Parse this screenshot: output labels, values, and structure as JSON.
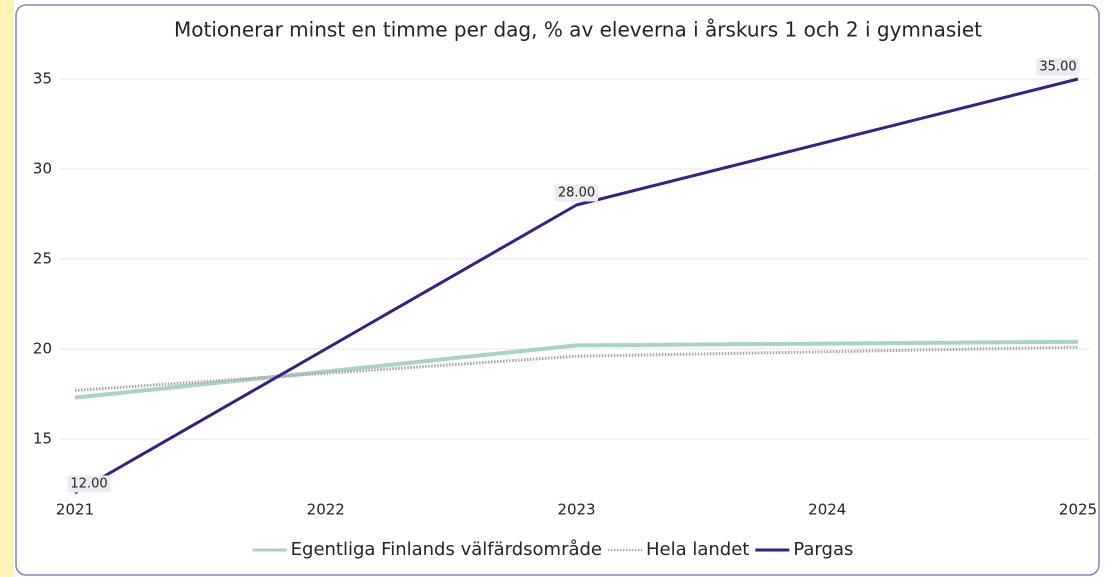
{
  "chart_data": {
    "type": "line",
    "title": "Motionerar minst en timme per dag, % av eleverna i årskurs 1 och 2 i gymnasiet",
    "x": [
      2021,
      2023,
      2025
    ],
    "xlim": [
      2021,
      2025
    ],
    "xticks": [
      2021,
      2022,
      2023,
      2024,
      2025
    ],
    "ylim": [
      12,
      36
    ],
    "yticks": [
      15,
      20,
      25,
      30,
      35
    ],
    "grid": true,
    "legend": "bottom",
    "series": [
      {
        "name": "Egentliga Finlands välfärdsområde",
        "color": "#a9d3c7",
        "style": "solid",
        "values": [
          17.3,
          20.2,
          20.4
        ]
      },
      {
        "name": "Hela landet",
        "color": "#a6a6a6",
        "style": "dotted",
        "values": [
          17.7,
          19.6,
          20.1
        ]
      },
      {
        "name": "Pargas",
        "color": "#3a1f86",
        "style": "solid",
        "values": [
          12,
          28,
          35
        ],
        "value_labels": [
          "12.00",
          "28.00",
          "35.00"
        ]
      }
    ]
  }
}
